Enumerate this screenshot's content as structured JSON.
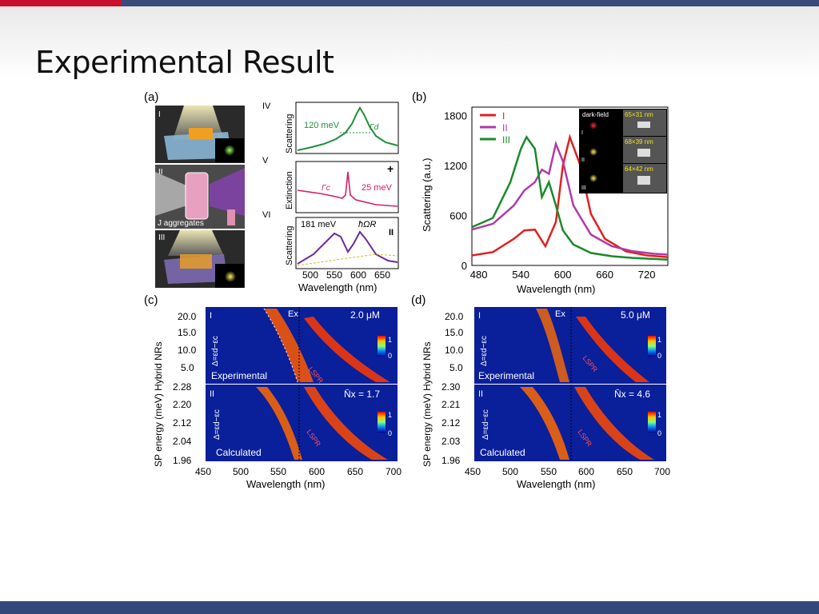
{
  "slide": {
    "title": "Experimental Result",
    "colors": {
      "accent_red": "#c8102e",
      "bar_blue": "#33487a"
    }
  },
  "figure": {
    "panel_a": {
      "label": "(a)",
      "rows": [
        "I",
        "II",
        "III"
      ],
      "row2_caption": "J aggregates",
      "sub": [
        {
          "roman": "IV",
          "ylabel": "Scattering",
          "ann1": "120 meV",
          "ann2": "Γd"
        },
        {
          "roman": "V",
          "ylabel": "Extinction",
          "ann1": "Γc",
          "ann2": "25 meV",
          "marker": "+"
        },
        {
          "roman": "VI",
          "ylabel": "Scattering",
          "ann1": "181 meV",
          "ann2": "ħΩR",
          "marker": "II"
        }
      ],
      "xticks": [
        "500",
        "550",
        "600",
        "650"
      ],
      "xlabel": "Wavelength (nm)"
    },
    "panel_b": {
      "label": "(b)",
      "ylabel": "Scattering (a.u.)",
      "xlabel": "Wavelength (nm)",
      "legend": [
        "I",
        "II",
        "III"
      ],
      "inset_header": "dark-field",
      "inset_sizes": [
        "65×31 nm",
        "68×39 nm",
        "64×42 nm"
      ],
      "inset_rows": [
        "I",
        "II",
        "III"
      ]
    },
    "panel_c": {
      "label": "(c)",
      "ylabel": "SP energy (meV) Hybrid NRs",
      "xlabel": "Wavelength (nm)",
      "top": {
        "roman": "I",
        "conc": "2.0 μM",
        "caption": "Experimental",
        "yticks": [
          "20.0",
          "15.0",
          "10.0",
          "5.0"
        ],
        "ex": "Ex",
        "lspr": "LSPR",
        "cb": [
          "1",
          "0"
        ],
        "delta": "Δ=εd−εc"
      },
      "bottom": {
        "roman": "II",
        "n": "N̄x = 1.7",
        "caption": "Calculated",
        "yticks": [
          "2.28",
          "2.20",
          "2.12",
          "2.04",
          "1.96"
        ],
        "lspr": "LSPR",
        "cb": [
          "1",
          "0"
        ],
        "delta": "Δ=εd−εc"
      },
      "xticks": [
        "450",
        "500",
        "550",
        "600",
        "650",
        "700"
      ]
    },
    "panel_d": {
      "label": "(d)",
      "ylabel": "SP energy (meV) Hybrid NRs",
      "xlabel": "Wavelength (nm)",
      "top": {
        "roman": "I",
        "conc": "5.0 μM",
        "caption": "Experimental",
        "yticks": [
          "20.0",
          "15.0",
          "10.0",
          "5.0"
        ],
        "ex": "Ex",
        "lspr": "LSPR",
        "cb": [
          "1",
          "0"
        ],
        "delta": "Δ=εd−εc"
      },
      "bottom": {
        "roman": "II",
        "n": "N̄x = 4.6",
        "caption": "Calculated",
        "yticks": [
          "2.30",
          "2.21",
          "2.12",
          "2.03",
          "1.96"
        ],
        "lspr": "LSPR",
        "cb": [
          "1",
          "0"
        ],
        "delta": "Δ=εd−εc"
      },
      "xticks": [
        "450",
        "500",
        "550",
        "600",
        "650",
        "700"
      ]
    }
  },
  "chart_data": [
    {
      "type": "line",
      "title": "(b)",
      "xlabel": "Wavelength (nm)",
      "ylabel": "Scattering (a.u.)",
      "xlim": [
        470,
        750
      ],
      "ylim": [
        0,
        1900
      ],
      "xticks": [
        480,
        540,
        600,
        660,
        720
      ],
      "yticks": [
        0,
        600,
        1200,
        1800
      ],
      "legend": "top-left",
      "series": [
        {
          "name": "I",
          "color": "#e02020",
          "x": [
            470,
            500,
            530,
            545,
            560,
            575,
            590,
            600,
            610,
            625,
            640,
            660,
            690,
            720,
            750
          ],
          "y": [
            120,
            160,
            320,
            420,
            430,
            230,
            520,
            1200,
            1540,
            1200,
            620,
            320,
            170,
            120,
            100
          ]
        },
        {
          "name": "II",
          "color": "#b03aa8",
          "x": [
            470,
            500,
            530,
            545,
            560,
            570,
            580,
            590,
            600,
            615,
            640,
            670,
            700,
            730,
            750
          ],
          "y": [
            430,
            500,
            720,
            900,
            1000,
            1150,
            1100,
            1460,
            1250,
            720,
            370,
            230,
            170,
            140,
            130
          ]
        },
        {
          "name": "III",
          "color": "#1a8a2a",
          "x": [
            470,
            500,
            525,
            540,
            548,
            560,
            570,
            580,
            590,
            600,
            615,
            640,
            670,
            700,
            750
          ],
          "y": [
            460,
            570,
            1000,
            1400,
            1540,
            1400,
            820,
            1000,
            720,
            420,
            250,
            150,
            110,
            90,
            70
          ]
        }
      ]
    }
  ]
}
